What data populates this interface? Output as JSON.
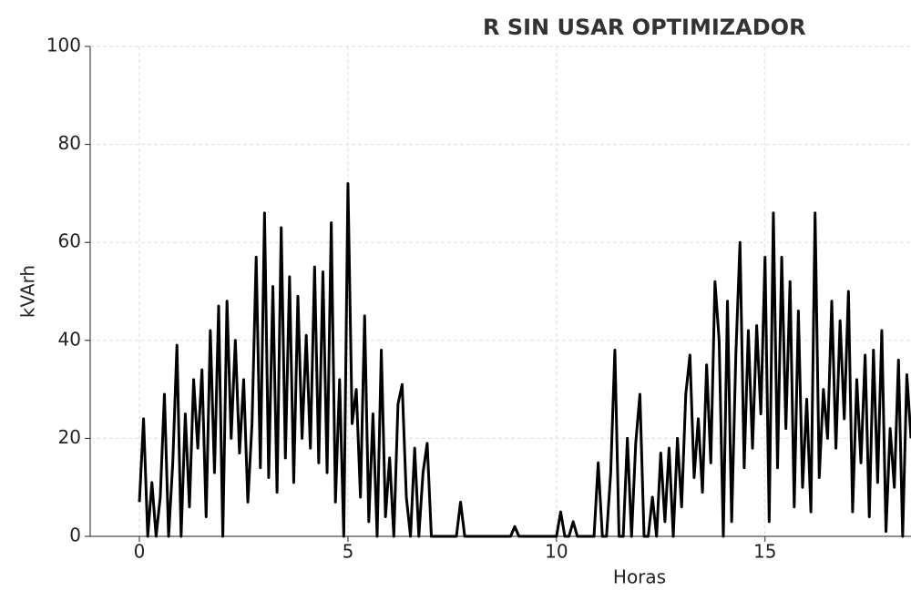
{
  "chart_data": {
    "type": "line",
    "title": "R SIN USAR OPTIMIZADOR",
    "xlabel": "Horas",
    "ylabel": "kVArh",
    "x": [
      0,
      0.1,
      0.2,
      0.3,
      0.4,
      0.5,
      0.6,
      0.7,
      0.8,
      0.9,
      1,
      1.1,
      1.2,
      1.3,
      1.4,
      1.5,
      1.6,
      1.7,
      1.8,
      1.9,
      2,
      2.1,
      2.2,
      2.3,
      2.4,
      2.5,
      2.6,
      2.7,
      2.8,
      2.9,
      3,
      3.1,
      3.2,
      3.3,
      3.4,
      3.5,
      3.6,
      3.7,
      3.8,
      3.9,
      4,
      4.1,
      4.2,
      4.3,
      4.4,
      4.5,
      4.6,
      4.7,
      4.8,
      4.9,
      5,
      5.1,
      5.2,
      5.3,
      5.4,
      5.5,
      5.6,
      5.7,
      5.8,
      5.9,
      6,
      6.1,
      6.2,
      6.3,
      6.4,
      6.5,
      6.6,
      6.7,
      6.8,
      6.9,
      7,
      7.1,
      7.2,
      7.3,
      7.4,
      7.5,
      7.6,
      7.7,
      7.8,
      7.9,
      8,
      8.1,
      8.2,
      8.3,
      8.4,
      8.5,
      8.6,
      8.7,
      8.8,
      8.9,
      9,
      9.1,
      9.2,
      9.3,
      9.4,
      9.5,
      9.6,
      9.7,
      9.8,
      9.9,
      10,
      10.1,
      10.2,
      10.3,
      10.4,
      10.5,
      10.6,
      10.7,
      10.8,
      10.9,
      11,
      11.1,
      11.2,
      11.3,
      11.4,
      11.5,
      11.6,
      11.7,
      11.8,
      11.9,
      12,
      12.1,
      12.2,
      12.3,
      12.4,
      12.5,
      12.6,
      12.7,
      12.8,
      12.9,
      13,
      13.1,
      13.2,
      13.3,
      13.4,
      13.5,
      13.6,
      13.7,
      13.8,
      13.9,
      14,
      14.1,
      14.2,
      14.3,
      14.4,
      14.5,
      14.6,
      14.7,
      14.8,
      14.9,
      15,
      15.1,
      15.2,
      15.3,
      15.4,
      15.5,
      15.6,
      15.7,
      15.8,
      15.9,
      16,
      16.1,
      16.2,
      16.3,
      16.4,
      16.5,
      16.6,
      16.7,
      16.8,
      16.9,
      17,
      17.1,
      17.2,
      17.3,
      17.4,
      17.5,
      17.6,
      17.7,
      17.8,
      17.9,
      18,
      18.1,
      18.2,
      18.3,
      18.4,
      18.5
    ],
    "series": [
      {
        "name": "kVArh",
        "color": "#000000",
        "values": [
          7,
          24,
          0,
          11,
          0,
          8,
          29,
          0,
          15,
          39,
          0,
          25,
          6,
          32,
          18,
          34,
          4,
          42,
          13,
          47,
          0,
          48,
          20,
          40,
          17,
          32,
          7,
          23,
          57,
          14,
          66,
          12,
          51,
          9,
          63,
          16,
          53,
          11,
          49,
          20,
          41,
          18,
          55,
          15,
          54,
          13,
          64,
          7,
          32,
          0,
          72,
          23,
          30,
          8,
          45,
          3,
          25,
          0,
          38,
          4,
          16,
          0,
          27,
          31,
          8,
          0,
          18,
          0,
          13,
          19,
          0,
          0,
          0,
          0,
          0,
          0,
          0,
          7,
          0,
          0,
          0,
          0,
          0,
          0,
          0,
          0,
          0,
          0,
          0,
          0,
          2,
          0,
          0,
          0,
          0,
          0,
          0,
          0,
          0,
          0,
          0,
          5,
          0,
          0,
          3,
          0,
          0,
          0,
          0,
          0,
          15,
          0,
          0,
          13,
          38,
          0,
          0,
          20,
          0,
          19,
          29,
          0,
          0,
          8,
          0,
          17,
          3,
          18,
          0,
          20,
          6,
          29,
          37,
          12,
          24,
          9,
          35,
          15,
          52,
          40,
          0,
          48,
          3,
          37,
          60,
          14,
          42,
          18,
          43,
          25,
          57,
          3,
          66,
          14,
          57,
          22,
          52,
          6,
          46,
          10,
          28,
          5,
          66,
          12,
          30,
          20,
          48,
          18,
          44,
          24,
          50,
          5,
          32,
          15,
          37,
          4,
          38,
          11,
          42,
          1,
          22,
          10,
          36,
          0,
          33,
          20
        ]
      }
    ],
    "xlim": [
      -1.18,
      18.5
    ],
    "ylim": [
      0,
      100
    ],
    "xticks": [
      0,
      5,
      10,
      15
    ],
    "yticks": [
      0,
      20,
      40,
      60,
      80,
      100
    ],
    "grid": true
  }
}
